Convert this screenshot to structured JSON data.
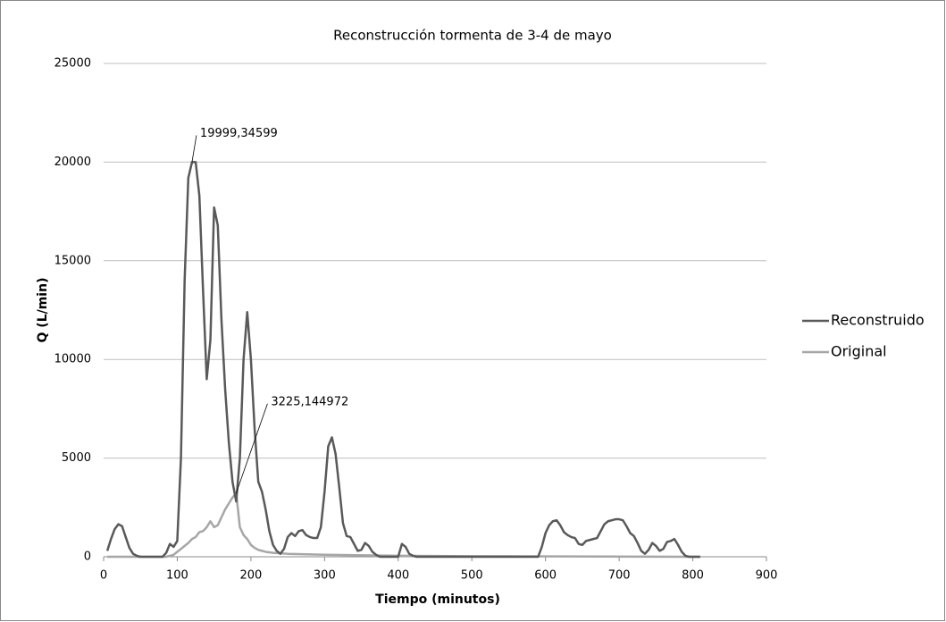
{
  "chart_data": {
    "type": "line",
    "title": "Reconstrucción tormenta de 3-4 de mayo",
    "x_label": "Tiempo (minutos)",
    "y_label": "Q (L/min)",
    "xlim": [
      0,
      900
    ],
    "xticks": [
      0,
      100,
      200,
      300,
      400,
      500,
      600,
      700,
      800,
      900
    ],
    "ylim": [
      0,
      25000
    ],
    "yticks": [
      0,
      5000,
      10000,
      15000,
      20000,
      25000
    ],
    "grid": true,
    "legend": "right",
    "series": [
      {
        "name": "Reconstruido",
        "color": "#595959",
        "x": [
          5,
          10,
          15,
          20,
          25,
          30,
          35,
          40,
          45,
          50,
          60,
          80,
          85,
          90,
          95,
          100,
          105,
          110,
          115,
          120,
          125,
          130,
          135,
          140,
          145,
          150,
          155,
          160,
          165,
          170,
          175,
          180,
          185,
          190,
          195,
          200,
          205,
          210,
          215,
          220,
          225,
          230,
          235,
          240,
          245,
          250,
          255,
          260,
          265,
          270,
          275,
          280,
          285,
          290,
          295,
          300,
          305,
          310,
          315,
          320,
          325,
          330,
          335,
          340,
          345,
          350,
          355,
          360,
          365,
          370,
          375,
          400,
          405,
          410,
          415,
          420,
          425,
          590,
          595,
          600,
          605,
          610,
          615,
          620,
          625,
          630,
          635,
          640,
          645,
          650,
          655,
          660,
          665,
          670,
          675,
          680,
          685,
          690,
          695,
          700,
          705,
          710,
          715,
          720,
          725,
          730,
          735,
          740,
          745,
          750,
          755,
          760,
          765,
          770,
          775,
          780,
          785,
          790,
          795,
          810
        ],
        "values": [
          300,
          900,
          1400,
          1650,
          1550,
          1000,
          450,
          150,
          50,
          0,
          0,
          0,
          200,
          650,
          500,
          800,
          5000,
          14000,
          19200,
          19999.34599,
          20000,
          18300,
          13500,
          9000,
          11000,
          17700,
          16800,
          12000,
          8500,
          5800,
          3800,
          2800,
          5000,
          10000,
          12400,
          10000,
          6500,
          3800,
          3300,
          2400,
          1300,
          600,
          300,
          150,
          400,
          1000,
          1200,
          1050,
          1300,
          1350,
          1100,
          1000,
          950,
          950,
          1500,
          3300,
          5600,
          6050,
          5200,
          3500,
          1700,
          1050,
          1000,
          650,
          300,
          350,
          700,
          550,
          250,
          100,
          0,
          0,
          650,
          500,
          150,
          50,
          0,
          0,
          500,
          1200,
          1600,
          1800,
          1850,
          1600,
          1250,
          1100,
          1000,
          950,
          650,
          600,
          800,
          850,
          900,
          950,
          1300,
          1650,
          1800,
          1850,
          1900,
          1900,
          1850,
          1550,
          1200,
          1050,
          700,
          300,
          150,
          350,
          700,
          550,
          300,
          400,
          750,
          800,
          900,
          600,
          250,
          50,
          0,
          0
        ]
      },
      {
        "name": "Original",
        "color": "#a6a6a6",
        "x": [
          5,
          85,
          90,
          95,
          100,
          105,
          110,
          115,
          120,
          125,
          130,
          135,
          140,
          145,
          150,
          155,
          160,
          165,
          170,
          175,
          180,
          185,
          190,
          195,
          200,
          205,
          210,
          215,
          220,
          230,
          250,
          300,
          400,
          500,
          810
        ],
        "values": [
          0,
          0,
          50,
          100,
          250,
          400,
          550,
          700,
          900,
          1000,
          1250,
          1300,
          1500,
          1800,
          1500,
          1600,
          2000,
          2400,
          2700,
          3000,
          3225.144972,
          1500,
          1100,
          900,
          600,
          450,
          350,
          300,
          250,
          200,
          150,
          100,
          50,
          30,
          0
        ]
      }
    ],
    "annotations": [
      {
        "text": "19999,34599",
        "x": 120,
        "y": 19999.34599
      },
      {
        "text": "3225,144972",
        "x": 180,
        "y": 3225.144972
      }
    ]
  }
}
